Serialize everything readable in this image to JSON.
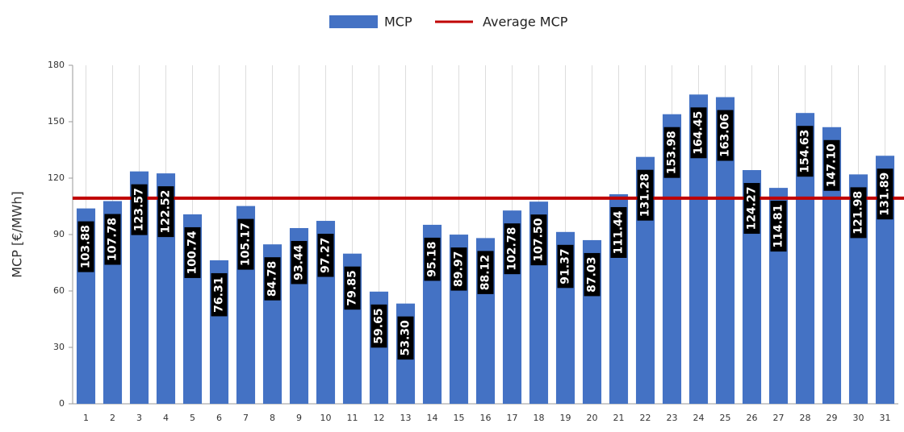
{
  "chart_data": {
    "type": "bar",
    "y_label": "MCP [€/MWh]",
    "categories": [
      "1",
      "2",
      "3",
      "4",
      "5",
      "6",
      "7",
      "8",
      "9",
      "10",
      "11",
      "12",
      "13",
      "14",
      "15",
      "16",
      "17",
      "18",
      "19",
      "20",
      "21",
      "22",
      "23",
      "24",
      "25",
      "26",
      "27",
      "28",
      "29",
      "30",
      "31"
    ],
    "series": [
      {
        "name": "MCP",
        "color": "#4472c4",
        "values": [
          103.88,
          107.78,
          123.57,
          122.52,
          100.74,
          76.31,
          105.17,
          84.78,
          93.44,
          97.27,
          79.85,
          59.65,
          53.3,
          95.18,
          89.97,
          88.12,
          102.78,
          107.5,
          91.37,
          87.03,
          111.44,
          131.28,
          153.98,
          164.45,
          163.06,
          124.27,
          114.81,
          154.63,
          147.1,
          121.98,
          131.89
        ],
        "value_labels": [
          "103.88",
          "107.78",
          "123.57",
          "122.52",
          "100.74",
          "76.31",
          "105.17",
          "84.78",
          "93.44",
          "97.27",
          "79.85",
          "59.65",
          "53.30",
          "95.18",
          "89.97",
          "88.12",
          "102.78",
          "107.50",
          "91.37",
          "87.03",
          "111.44",
          "131.28",
          "153.98",
          "164.45",
          "163.06",
          "124.27",
          "114.81",
          "154.63",
          "147.10",
          "121.98",
          "131.89"
        ]
      },
      {
        "name": "Average MCP",
        "color": "#c00000",
        "value": 109.33
      }
    ],
    "ylim": [
      0,
      180
    ],
    "yticks": [
      0,
      30,
      60,
      90,
      120,
      150,
      180
    ],
    "grid": true
  }
}
